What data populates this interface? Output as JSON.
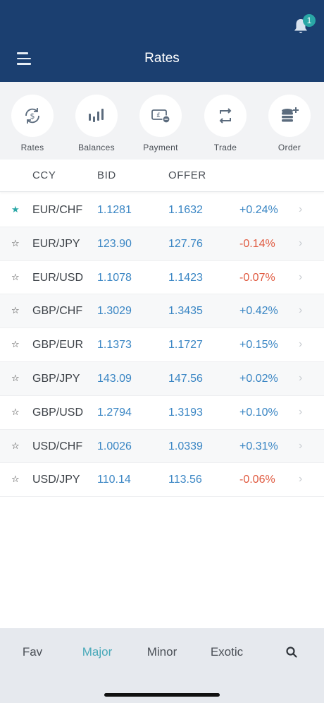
{
  "header": {
    "title": "Rates",
    "notification_count": "1",
    "colors": {
      "background": "#1b3f70",
      "badge": "#2aa7a6"
    }
  },
  "actions": [
    {
      "label": "Rates",
      "icon": "currency-exchange-icon"
    },
    {
      "label": "Balances",
      "icon": "bar-chart-icon"
    },
    {
      "label": "Payment",
      "icon": "payment-icon"
    },
    {
      "label": "Trade",
      "icon": "repeat-arrows-icon"
    },
    {
      "label": "Order",
      "icon": "coin-stack-plus-icon"
    }
  ],
  "table": {
    "columns": {
      "ccy": "CCY",
      "bid": "BID",
      "offer": "OFFER"
    },
    "rows": [
      {
        "favorite": "★",
        "ccy": "EUR/CHF",
        "bid": "1.1281",
        "offer": "1.1632",
        "change": "+0.24%"
      },
      {
        "favorite": "☆",
        "ccy": "EUR/JPY",
        "bid": "123.90",
        "offer": "127.76",
        "change": "-0.14%"
      },
      {
        "favorite": "☆",
        "ccy": "EUR/USD",
        "bid": "1.1078",
        "offer": "1.1423",
        "change": "-0.07%"
      },
      {
        "favorite": "☆",
        "ccy": "GBP/CHF",
        "bid": "1.3029",
        "offer": "1.3435",
        "change": "+0.42%"
      },
      {
        "favorite": "☆",
        "ccy": "GBP/EUR",
        "bid": "1.1373",
        "offer": "1.1727",
        "change": "+0.15%"
      },
      {
        "favorite": "☆",
        "ccy": "GBP/JPY",
        "bid": "143.09",
        "offer": "147.56",
        "change": "+0.02%"
      },
      {
        "favorite": "☆",
        "ccy": "GBP/USD",
        "bid": "1.2794",
        "offer": "1.3193",
        "change": "+0.10%"
      },
      {
        "favorite": "☆",
        "ccy": "USD/CHF",
        "bid": "1.0026",
        "offer": "1.0339",
        "change": "+0.31%"
      },
      {
        "favorite": "☆",
        "ccy": "USD/JPY",
        "bid": "110.14",
        "offer": "113.56",
        "change": "-0.06%"
      }
    ],
    "colors": {
      "positive": "#3a86c4",
      "negative": "#e05a40"
    }
  },
  "tabs": {
    "items": [
      "Fav",
      "Major",
      "Minor",
      "Exotic"
    ],
    "active": "Major",
    "search_icon": "search-icon"
  }
}
